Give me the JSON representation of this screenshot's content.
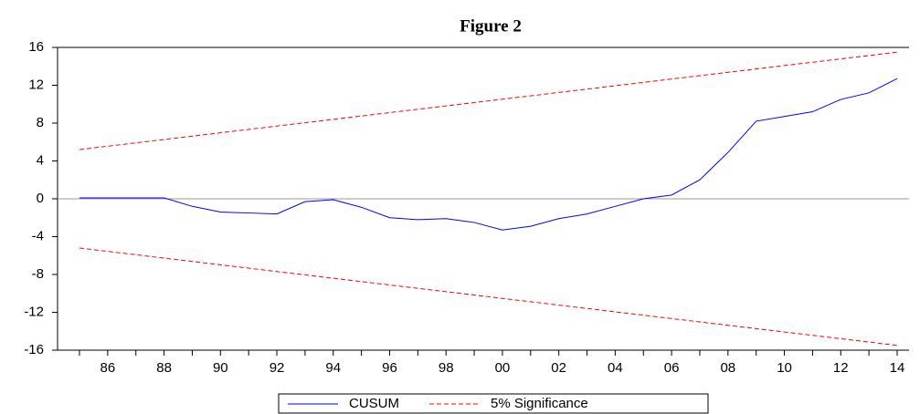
{
  "chart_data": {
    "type": "line",
    "title": "Figure 2",
    "categories": [
      null,
      "86",
      null,
      "88",
      null,
      "90",
      null,
      "92",
      null,
      "94",
      null,
      "96",
      null,
      "98",
      null,
      "00",
      null,
      "02",
      null,
      "04",
      null,
      "06",
      null,
      "08",
      null,
      "10",
      null,
      "12",
      null,
      "14"
    ],
    "series": [
      {
        "name": "CUSUM",
        "color": "#0000ff",
        "dash": false,
        "values": [
          0.1,
          0.1,
          0.1,
          0.1,
          -0.8,
          -1.4,
          -1.5,
          -1.6,
          -0.3,
          -0.1,
          -0.9,
          -2.0,
          -2.2,
          -2.1,
          -2.5,
          -3.3,
          -2.9,
          -2.1,
          -1.6,
          -0.8,
          0.0,
          0.4,
          2.0,
          4.9,
          8.2,
          8.7,
          9.2,
          10.5,
          11.2,
          12.7
        ]
      },
      {
        "name": "5% Significance",
        "color": "#ff0000",
        "dash": true,
        "values": [
          5.2,
          5.56,
          5.91,
          6.27,
          6.62,
          6.98,
          7.33,
          7.69,
          8.04,
          8.4,
          8.75,
          9.11,
          9.46,
          9.82,
          10.17,
          10.53,
          10.88,
          11.24,
          11.59,
          11.95,
          12.3,
          12.66,
          13.01,
          13.37,
          13.72,
          14.08,
          14.43,
          14.79,
          15.14,
          15.5
        ]
      },
      {
        "color": "#ff0000",
        "dash": true,
        "values": [
          -5.2,
          -5.56,
          -5.91,
          -6.27,
          -6.62,
          -6.98,
          -7.33,
          -7.69,
          -8.04,
          -8.4,
          -8.75,
          -9.11,
          -9.46,
          -9.82,
          -10.17,
          -10.53,
          -10.88,
          -11.24,
          -11.59,
          -11.95,
          -12.3,
          -12.66,
          -13.01,
          -13.37,
          -13.72,
          -14.08,
          -14.43,
          -14.79,
          -15.14,
          -15.5
        ]
      }
    ],
    "ylim": [
      -16,
      16
    ],
    "yticks": [
      -16,
      -12,
      -8,
      -4,
      0,
      4,
      8,
      12,
      16
    ],
    "zero_line": true
  }
}
